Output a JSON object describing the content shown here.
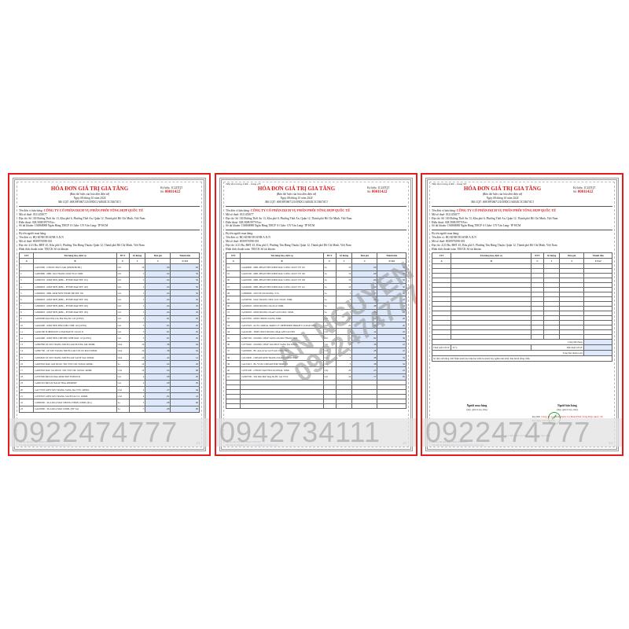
{
  "invoice": {
    "title": "HÓA ĐƠN GIÁ TRỊ GIA TĂNG",
    "subtitle": "(Bản thể hiện của hóa đơn điện tử)",
    "date_line": "Ngày 08 tháng 10 năm 2024",
    "tax_code_line": "Mã CQT: 00818F5867121059DC1A4924C3C54674C3",
    "serial_label": "Ký hiệu: 1C24TQT",
    "number_label": "Số:",
    "number": "00011422",
    "seller_label": "Tên đơn vị bán hàng:",
    "seller_name": "CÔNG TY CỔ PHẦN DỊCH VỤ PHÂN PHỐI TỔNG HỢP QUỐC TẾ",
    "seller_tax": "Mã số thuế: 0311453077",
    "seller_address": "Địa chỉ: Số 130 Đường Thới An 13, Khu phố 6, Phường Thới An, Quận 12, Thành phố Hồ Chí Minh, Việt Nam",
    "seller_phone": "Điện thoại: 028.5808.9979        Fax:",
    "seller_bank": "Số tài khoản: 136868088 Ngân Hàng TMCP Á Châu- CN Văn Lang- TP HCM",
    "buyer_label": "Họ tên người mua hàng:",
    "buyer_name": "Tên đơn vị: HỘ KINH DOANH A.N.N",
    "buyer_tax": "Mã số thuế: 8039976598-001",
    "buyer_address": "Địa chỉ: 2/23 Ba, ĐHT 45, Khu phố 5, Phường Tân Hưng Thuận, Quận 12, Thành phố Hồ Chí Minh, Việt Nam",
    "payment": "Hình thức thanh toán: TM/CK        Số tài khoản:",
    "continued": "Tiếp theo trang trước - trang 2/3",
    "continued3": "Tiếp theo trang trước - trang 3/3",
    "columns": [
      "STT",
      "Tên hàng hóa, dịch vụ",
      "ĐVT",
      "Số lượng",
      "Đơn giá",
      "Thành tiền"
    ],
    "column_codes": [
      "A",
      "B",
      "C",
      "1",
      "2",
      "3=1x2"
    ],
    "footer_lookup": "Mã tra cứu hóa đơn: 3IO1CT76OYN",
    "footer_site": "Tra cứu tại Website:",
    "footer_link": "https://www.meinvoice.vn/tra-cuu"
  },
  "pages": [
    {
      "page_no": "1/3",
      "watermark": "0922474777",
      "rows": [
        [
          "1",
          "G4070390 - CHUOT MOY ZAR (ONPR/BCHL)",
          "Cái",
          "16",
          ".60",
          ".00"
        ],
        [
          "2",
          "G4003880 - MBL TAO TRANG MAT NGU 50ML",
          "Cái",
          "5",
          ".04",
          "50"
        ],
        [
          "3",
          "G3960703 - KEM NEN (MBL - FITME MAP SPF 115)",
          "Cái",
          "5",
          ".04",
          "50"
        ],
        [
          "4",
          "G3960603 - KEM NEN (MBL - FITME MAP SPF 120)",
          "Cái",
          "5",
          ".04",
          "50"
        ],
        [
          "5",
          "G3960902 - MBL KEM NEN FITME MP SPF 130",
          "Cái",
          "5",
          ".04",
          "50"
        ],
        [
          "6",
          "G3960603 - KEM NEN (MBL - FITME MAP SPF 130)",
          "Cái",
          "5",
          ".04",
          "50"
        ],
        [
          "7",
          "G3960903 - KEM NEN (MBL - FITME MAP SPF 220)",
          "Cái",
          "5",
          ".04",
          "50"
        ],
        [
          "8",
          "G3960803 - KEM NEN (MBL - FITME MAP SPF 105)",
          "Cái",
          "5",
          ".04",
          "50"
        ],
        [
          "9",
          "G4056580 Kem Nền Che Phủ Nhẹ Mỏ 120 (LENS)",
          "Cái",
          "5",
          ".81",
          "05"
        ],
        [
          "10",
          "G4043280 - KEM NEN PHU KIEU NHE 110 (LENS)",
          "Cái",
          "5",
          ".81",
          "05"
        ],
        [
          "11",
          "G4041580 SUPERSTAY LUMI MATTE 110 AS N",
          "Cái",
          "5",
          ".81",
          "05"
        ],
        [
          "12",
          "G4043480 - KEM NEN CHE PHU NHE MAT 115 (LENS)",
          "Cái",
          "5",
          ".81",
          "05"
        ],
        [
          "13",
          "G2897860 LP TAY TRANG MICELLAR DUONG AM 400ML",
          "Chai",
          "16",
          ".38",
          "64"
        ],
        [
          "14",
          "G2897700 - LP TAY TRANG MICELLAR TOI UU MAT 400ML",
          "Chai",
          "16",
          ".38",
          "64"
        ],
        [
          "15",
          "G3204020 LP TAY TRANG MICELLAR SACH SAU 400ML",
          "Chai",
          "16",
          ".42",
          "14"
        ],
        [
          "16",
          "G4263502 DAU GOI DUOC TOC EXT OIL 5LEGK 440ML",
          "Lọ",
          "16",
          ".04",
          "20"
        ],
        [
          "17",
          "G4263502 DAU XA DUOC TOC EXT OIL 5LEGK 440ML",
          "CÁI",
          "16",
          ".04",
          "68"
        ],
        [
          "18",
          "G3767900 MICLR Pink 400ml ERT EXPLPCR",
          "Cái",
          "4",
          ".08",
          "95"
        ],
        [
          "19",
          "G4001401 MICLR NAGIC Blue 400mlERT",
          "Cái",
          "4",
          ".08",
          "95"
        ],
        [
          "20",
          "G4173703 GIEN TAY TRANG SANG DA VTIC 400ML",
          "CÁI",
          "4",
          ".27",
          "64"
        ],
        [
          "21",
          "G3767007 GIEN TAY TRANG SACH SAU CL 400ML",
          "CÁI",
          "4",
          ".81",
          "45"
        ],
        [
          "22",
          "G3996300 - SUA RUA MAT CHONG NHON 100ML (RG)",
          "Lọ",
          "5",
          ".08",
          "90"
        ],
        [
          "23",
          "G4229300 - SUA RUA MAT 100ML (BY SA)",
          "Lọ",
          "5",
          ".08",
          "90"
        ]
      ]
    },
    {
      "page_no": "2/3",
      "watermark": "0942734111",
      "diagonal_watermark": [
        "AN NGUYEN",
        "0922474777"
      ],
      "rows": [
        [
          "24",
          "G4449900 - MBL PHAN NEN KIEM DAU LONG SUOT VE 110",
          "Lọ",
          "10",
          ".60",
          "50"
        ],
        [
          "25",
          "G4450100 - MBL PHAN NEN KIEM DAU LONG SUOT VE 120",
          "Lọ",
          "10",
          ".60",
          "50"
        ],
        [
          "26",
          "G4450300 - MBL PHAN NEN KIEM DAU LONG SUOT VE 128",
          "Lọ",
          "10",
          ".60",
          "50"
        ],
        [
          "27",
          "G4449400 - MBL PHAN NEN KIEM DAU LONG SUOT VE 112",
          "Lọ",
          "10",
          ".60",
          "50"
        ],
        [
          "28",
          "G3899900 - SON NUOI DUONG 3.7G",
          "Lọ",
          "5",
          ".07",
          "95"
        ],
        [
          "29",
          "G4348700 - DAU DUONG SIEU LOC NUOC 30ML",
          "Lọ",
          "5",
          ".48",
          "22"
        ],
        [
          "30",
          "G4348503 - KEM DUONG DA NGU 50ML",
          "Lọ",
          "5",
          ".48",
          "22"
        ],
        [
          "31",
          "G4348303 - KEM DUONG NGAY GLYCOLIC 50ML",
          "Lọ",
          "5",
          ".48",
          "22"
        ],
        [
          "32",
          "G4197802 - KEM CHONG NANG 50ML",
          "Cái",
          "20",
          ".04",
          "20"
        ],
        [
          "33",
          "G4197903 - KCN L'OREAL PARIS UV DEFENDER BRIGHT CLEAR 50ML",
          "Cái",
          "20",
          ".04",
          "20"
        ],
        [
          "34",
          "G4411000 - TINH CHAT DUONG Mask ANTI ACNES",
          "Cái",
          "5",
          ".14",
          "45"
        ],
        [
          "35",
          "G3967302 - DUONG CHAT SANG DA MO THAM 30ML",
          "Cái",
          "5",
          ".82",
          "30"
        ],
        [
          "36",
          "G3776202 - DUONG CHAT TAO BOT SANG DA 100ML",
          "Cái",
          "5",
          ".38",
          "22"
        ],
        [
          "37",
          "G4058400 - BC Anti-Acne Gel Foam 150ml ERT",
          "Cái",
          "5",
          ".28",
          "22"
        ],
        [
          "38",
          "G3214000 - CREAM KEM TRANG DA BAN DEM 50ML",
          "Cái",
          "5",
          ".38",
          "32"
        ],
        [
          "39",
          "G4213413 - BC VUZU CREAM FOR 50ML ET",
          "Cái",
          "5",
          ".38",
          "32"
        ],
        [
          "40",
          "G3763100 - CHUOT DAY HOCULOSSAL 50ML",
          "Cây",
          "20",
          ".25",
          "22"
        ],
        [
          "41",
          "G4363700 - Sữa Rửa Mặt Sáng Da BC Gel VITC",
          "Cái",
          "24",
          ".77",
          "65"
        ]
      ]
    },
    {
      "page_no": "3/3",
      "watermark": "0922474777",
      "rows": [],
      "totals": {
        "subtotal_label": "Cộng tiền hàng:",
        "vat_rate_label": "Thuế suất GTGT:",
        "vat_rate": "10 %",
        "vat_label": "Tiền thuế GTGT:",
        "total_label": "Tổng tiền thanh toán:",
        "in_words_label": "Số tiền viết bằng chữ: Năm mươi hai triệu hai trăm ba mươi bảy nghìn tám trăm chín mươi đồng chẵn."
      },
      "signatures": {
        "buyer_title": "Người mua hàng",
        "buyer_note": "(Ký, ghi rõ họ, tên)",
        "seller_title": "Người bán hàng",
        "seller_note": "(Ký, ghi rõ họ, tên)",
        "signed_by_label": "Ký bởi:",
        "signed_by": "Công Ty Cổ Phần Dịch Vụ Phân Phối Tổng Hợp Quốc Tế",
        "signed_date_label": "Ký ngày:",
        "signed_date": "08/10/2024",
        "note": "(Cần kiểm tra, đối chiếu khi lập, giao, nhận hóa đơn)"
      }
    }
  ],
  "colors": {
    "accent": "#d81e1e",
    "frame": "#e31b1b",
    "highlight": "#dde9fb",
    "stamp_check": "#2aa54a"
  }
}
